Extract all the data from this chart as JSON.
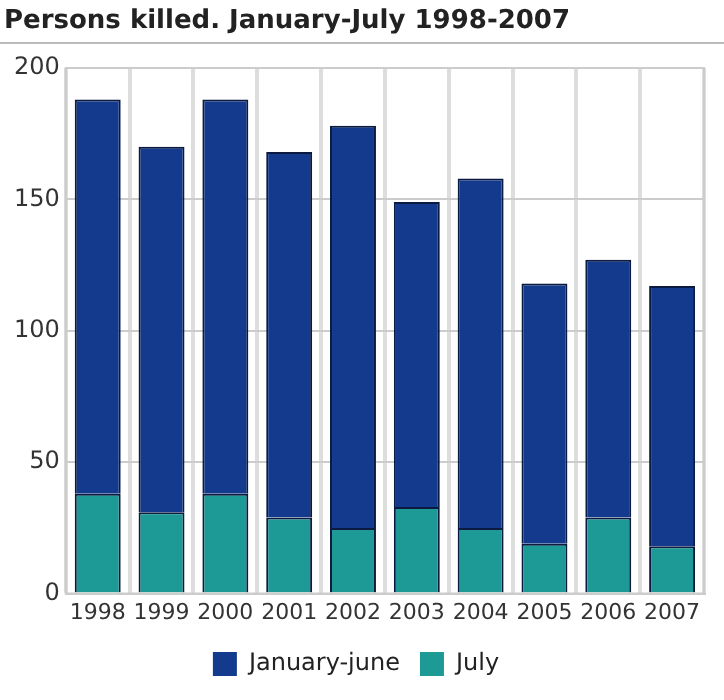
{
  "chart_data": {
    "type": "bar",
    "title": "Persons killed. January-July 1998-2007",
    "categories": [
      "1998",
      "1999",
      "2000",
      "2001",
      "2002",
      "2003",
      "2004",
      "2005",
      "2006",
      "2007"
    ],
    "stacked": true,
    "series": [
      {
        "name": "July",
        "color": "#1e9a96",
        "values": [
          38,
          31,
          38,
          29,
          25,
          33,
          25,
          19,
          29,
          18
        ]
      },
      {
        "name": "January-june",
        "color": "#133a8c",
        "values": [
          150,
          139,
          150,
          139,
          153,
          116,
          133,
          99,
          98,
          99
        ]
      }
    ],
    "ylim": [
      0,
      200
    ],
    "yticks": [
      0,
      50,
      100,
      150,
      200
    ],
    "grid": true,
    "legend": "bottom"
  }
}
